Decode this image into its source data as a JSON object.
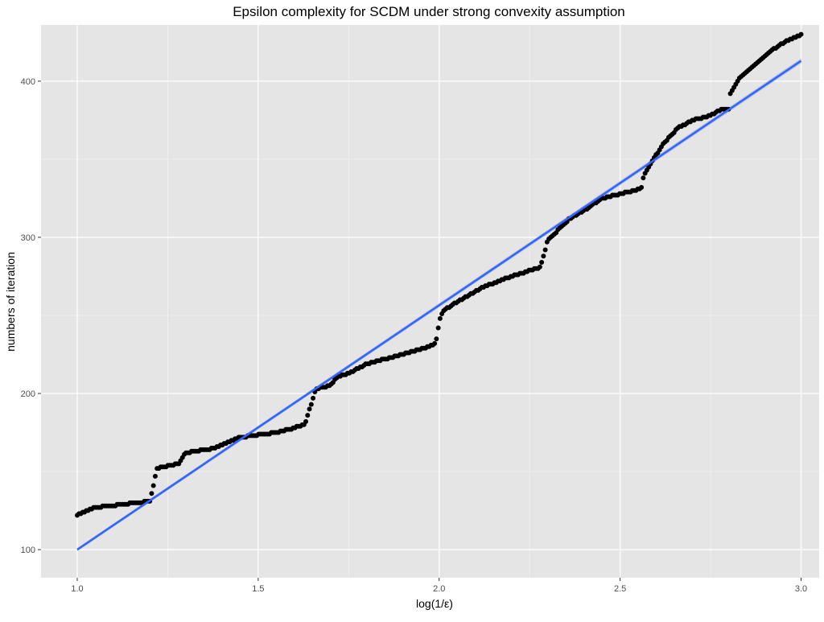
{
  "chart_data": {
    "type": "scatter",
    "title": "Epsilon complexity for SCDM under strong convexity assumption",
    "xlabel": "log(1/ε)",
    "ylabel": "numbers of iteration",
    "xlim": [
      0.9,
      3.05
    ],
    "ylim": [
      82,
      436
    ],
    "x_ticks": [
      1.0,
      1.5,
      2.0,
      2.5,
      3.0
    ],
    "x_tick_labels": [
      "1.0",
      "1.5",
      "2.0",
      "2.5",
      "3.0"
    ],
    "y_ticks": [
      100,
      200,
      300,
      400
    ],
    "y_tick_labels": [
      "100",
      "200",
      "300",
      "400"
    ],
    "grid": true,
    "legend": "none",
    "colors": {
      "panel_background": "#e5e5e5",
      "grid_major": "#ffffff",
      "grid_minor": "#f2f2f2",
      "points": "#000000",
      "fit_line": "#3366ff",
      "confidence_band": "#99aadd"
    },
    "step_profile": {
      "description_free_knots": true,
      "x": [
        1.0,
        1.05,
        1.2,
        1.205,
        1.22,
        1.28,
        1.3,
        1.38,
        1.45,
        1.55,
        1.6,
        1.625,
        1.63,
        1.66,
        1.68,
        1.7,
        1.72,
        1.75,
        1.8,
        1.9,
        1.97,
        1.99,
        2.0,
        2.01,
        2.06,
        2.12,
        2.2,
        2.28,
        2.3,
        2.33,
        2.36,
        2.4,
        2.45,
        2.54,
        2.56,
        2.565,
        2.6,
        2.62,
        2.66,
        2.7,
        2.75,
        2.78,
        2.8,
        2.8,
        2.83,
        2.87,
        2.92,
        2.96,
        3.0
      ],
      "y": [
        122,
        127,
        131,
        135,
        152,
        155,
        162,
        165,
        172,
        175,
        178,
        180,
        181,
        203,
        204,
        205,
        211,
        213,
        219,
        225,
        230,
        232,
        246,
        253,
        260,
        268,
        275,
        281,
        298,
        305,
        312,
        317,
        325,
        330,
        332,
        340,
        353,
        360,
        370,
        375,
        378,
        382,
        382,
        390,
        402,
        410,
        420,
        426,
        430
      ]
    },
    "points_count": 400,
    "fit_line": {
      "type": "linear",
      "x": [
        1.0,
        3.0
      ],
      "y": [
        100,
        413
      ]
    }
  }
}
